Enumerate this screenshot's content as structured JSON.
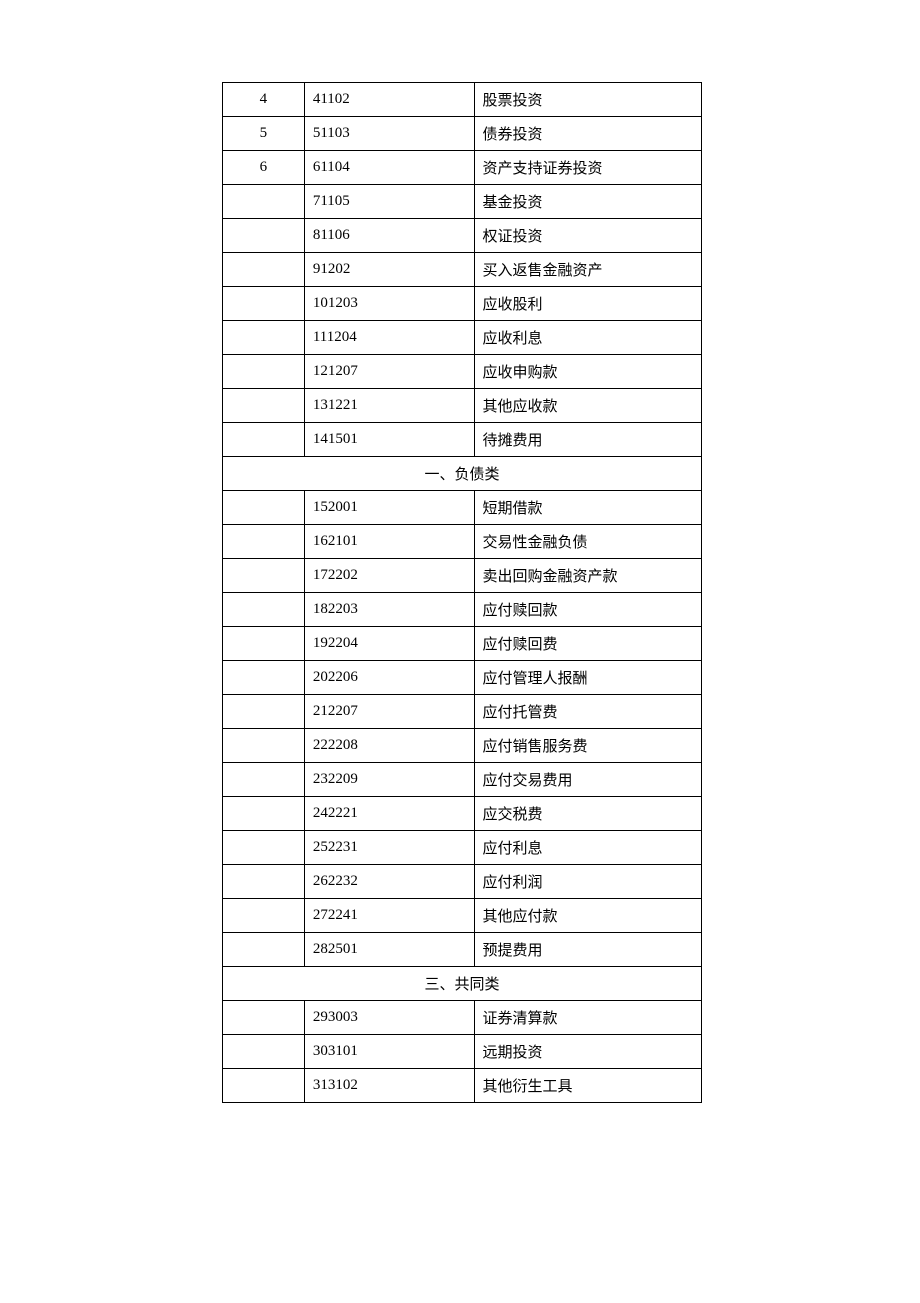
{
  "rows": [
    {
      "type": "data",
      "c1": "4",
      "c2": "41102",
      "c3": "股票投资"
    },
    {
      "type": "data",
      "c1": "5",
      "c2": "51103",
      "c3": "债券投资"
    },
    {
      "type": "data",
      "c1": "6",
      "c2": "61104",
      "c3": "资产支持证券投资"
    },
    {
      "type": "data",
      "c1": "",
      "c2": "71105",
      "c3": "基金投资"
    },
    {
      "type": "data",
      "c1": "",
      "c2": "81106",
      "c3": "权证投资"
    },
    {
      "type": "data",
      "c1": "",
      "c2": "91202",
      "c3": "买入返售金融资产"
    },
    {
      "type": "data",
      "c1": "",
      "c2": "101203",
      "c3": "应收股利"
    },
    {
      "type": "data",
      "c1": "",
      "c2": "111204",
      "c3": "应收利息"
    },
    {
      "type": "data",
      "c1": "",
      "c2": "121207",
      "c3": "应收申购款"
    },
    {
      "type": "data",
      "c1": "",
      "c2": "131221",
      "c3": "其他应收款"
    },
    {
      "type": "data",
      "c1": "",
      "c2": "141501",
      "c3": "待摊费用"
    },
    {
      "type": "section",
      "label": "一、负债类"
    },
    {
      "type": "data",
      "c1": "",
      "c2": "152001",
      "c3": "短期借款"
    },
    {
      "type": "data",
      "c1": "",
      "c2": "162101",
      "c3": "交易性金融负债"
    },
    {
      "type": "data",
      "c1": "",
      "c2": "172202",
      "c3": "卖出回购金融资产款"
    },
    {
      "type": "data",
      "c1": "",
      "c2": "182203",
      "c3": "应付赎回款"
    },
    {
      "type": "data",
      "c1": "",
      "c2": "192204",
      "c3": "应付赎回费"
    },
    {
      "type": "data",
      "c1": "",
      "c2": "202206",
      "c3": "应付管理人报酬"
    },
    {
      "type": "data",
      "c1": "",
      "c2": "212207",
      "c3": "应付托管费"
    },
    {
      "type": "data",
      "c1": "",
      "c2": "222208",
      "c3": "应付销售服务费"
    },
    {
      "type": "data",
      "c1": "",
      "c2": "232209",
      "c3": "应付交易费用"
    },
    {
      "type": "data",
      "c1": "",
      "c2": "242221",
      "c3": "应交税费"
    },
    {
      "type": "data",
      "c1": "",
      "c2": "252231",
      "c3": "应付利息"
    },
    {
      "type": "data",
      "c1": "",
      "c2": "262232",
      "c3": "应付利润"
    },
    {
      "type": "data",
      "c1": "",
      "c2": "272241",
      "c3": "其他应付款"
    },
    {
      "type": "data",
      "c1": "",
      "c2": "282501",
      "c3": "预提费用"
    },
    {
      "type": "section",
      "label": "三、共同类"
    },
    {
      "type": "data",
      "c1": "",
      "c2": "293003",
      "c3": "证券清算款"
    },
    {
      "type": "data",
      "c1": "",
      "c2": "303101",
      "c3": "远期投资"
    },
    {
      "type": "data",
      "c1": "",
      "c2": "313102",
      "c3": "其他衍生工具"
    }
  ]
}
